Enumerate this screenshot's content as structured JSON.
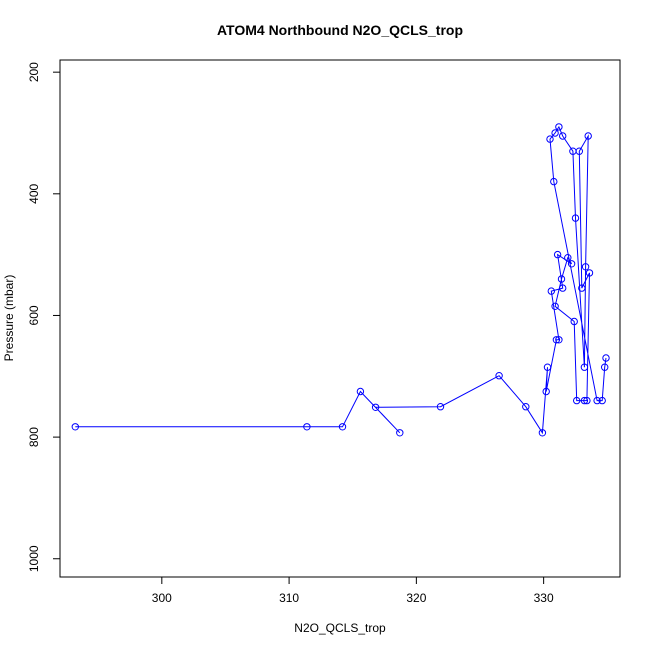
{
  "chart_data": {
    "type": "line",
    "title": "ATOM4 Northbound N2O_QCLS_trop",
    "xlabel": "N2O_QCLS_trop",
    "ylabel": "Pressure (mbar)",
    "xlim": [
      292,
      336
    ],
    "ylim": [
      1030,
      180
    ],
    "y_reversed": true,
    "grid": false,
    "legend": "none",
    "x_ticks": [
      300,
      310,
      320,
      330
    ],
    "y_ticks": [
      200,
      400,
      600,
      800,
      1000
    ],
    "series_color": "#0000ff",
    "series": [
      {
        "x": [
          293.2,
          311.4,
          314.2,
          315.6,
          318.7,
          316.8,
          321.9,
          326.5,
          328.6,
          329.9,
          330.3,
          330.2,
          331.0,
          331.2,
          330.6,
          331.5,
          331.1,
          332.2,
          331.9,
          331.4,
          330.9,
          332.4,
          332.6,
          333.2,
          333.4,
          333.6,
          333.0,
          332.8,
          333.5,
          333.3,
          333.2,
          332.5,
          332.3,
          331.5,
          331.2,
          330.9,
          330.5,
          330.8,
          334.2,
          334.6,
          334.8,
          334.9
        ],
        "y": [
          783,
          783,
          783,
          725,
          793,
          751,
          750,
          699,
          750,
          793,
          685,
          725,
          640,
          640,
          560,
          555,
          500,
          515,
          505,
          540,
          585,
          610,
          740,
          740,
          740,
          530,
          555,
          330,
          305,
          520,
          685,
          440,
          330,
          305,
          290,
          300,
          310,
          380,
          740,
          740,
          685,
          670
        ]
      }
    ]
  }
}
